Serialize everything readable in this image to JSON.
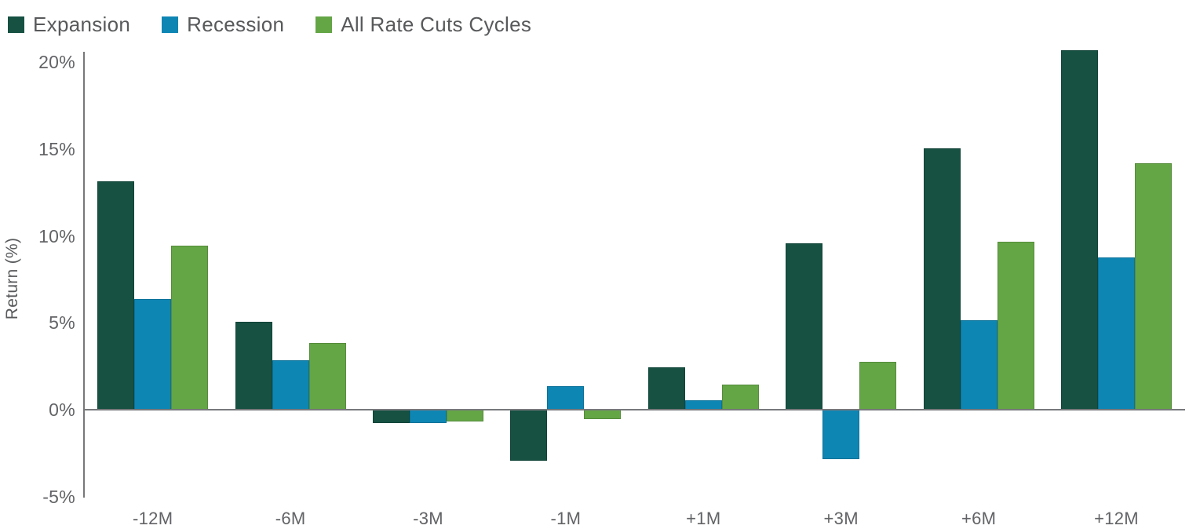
{
  "chart_data": {
    "type": "bar",
    "title": "",
    "xlabel": "",
    "ylabel": "Return (%)",
    "categories": [
      "-12M",
      "-6M",
      "-3M",
      "-1M",
      "+1M",
      "+3M",
      "+6M",
      "+12M"
    ],
    "series": [
      {
        "name": "Expansion",
        "color": "#165142",
        "values": [
          13.2,
          5.1,
          -0.8,
          -3.0,
          2.5,
          9.6,
          15.1,
          20.7
        ]
      },
      {
        "name": "Recession",
        "color": "#0E86B4",
        "values": [
          6.4,
          2.9,
          -0.8,
          1.4,
          0.6,
          -2.9,
          5.2,
          8.8
        ]
      },
      {
        "name": "All Rate Cuts Cycles",
        "color": "#64A546",
        "values": [
          9.5,
          3.9,
          -0.7,
          -0.6,
          1.5,
          2.8,
          9.7,
          14.2
        ]
      }
    ],
    "yticks": [
      {
        "value": 20,
        "label": "20%"
      },
      {
        "value": 15,
        "label": "15%"
      },
      {
        "value": 10,
        "label": "10%"
      },
      {
        "value": 5,
        "label": "5%"
      },
      {
        "value": 0,
        "label": "0%"
      },
      {
        "value": -5,
        "label": "-5%"
      }
    ],
    "ylim": [
      -5,
      21
    ],
    "grid": false,
    "legend_position": "top-left"
  }
}
